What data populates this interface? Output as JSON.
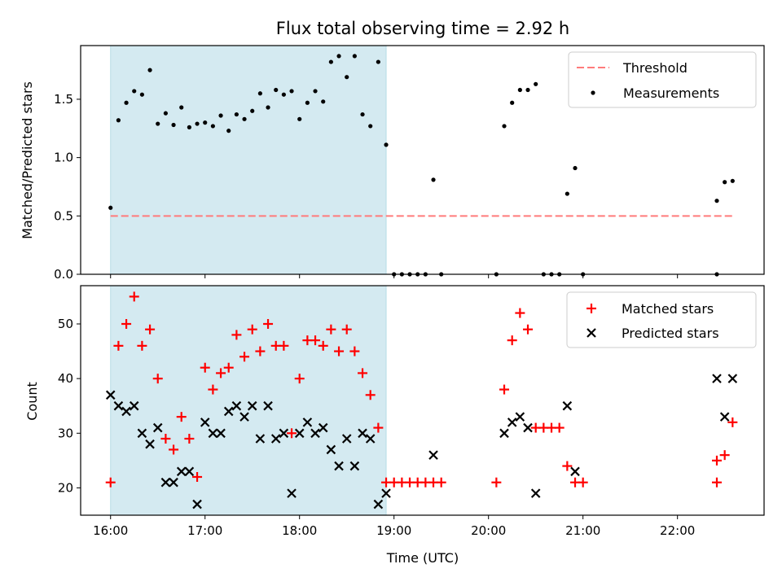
{
  "title": "Flux total observing time = 2.92 h",
  "chart_data": [
    {
      "type": "scatter",
      "ylabel": "Matched/Predicted stars",
      "ylim": [
        0,
        1.96
      ],
      "yticks": [
        "0.0",
        "0.5",
        "1.0",
        "1.5"
      ],
      "ytick_values": [
        0,
        0.5,
        1.0,
        1.5
      ],
      "xlim": [
        "15:41",
        "22:55"
      ],
      "legend_position": "top-right",
      "shaded_interval": {
        "start": "16:00",
        "end": "18:55",
        "color": "#d4eaf1"
      },
      "threshold": {
        "name": "Threshold",
        "value": 0.5,
        "x_start": "16:00",
        "x_end": "22:35",
        "color": "#ff7b7b"
      },
      "series": [
        {
          "name": "Measurements",
          "color": "#000000",
          "points": [
            [
              "16:00",
              0.57
            ],
            [
              "16:05",
              1.32
            ],
            [
              "16:10",
              1.47
            ],
            [
              "16:15",
              1.57
            ],
            [
              "16:20",
              1.54
            ],
            [
              "16:25",
              1.75
            ],
            [
              "16:30",
              1.29
            ],
            [
              "16:35",
              1.38
            ],
            [
              "16:40",
              1.28
            ],
            [
              "16:45",
              1.43
            ],
            [
              "16:50",
              1.26
            ],
            [
              "16:55",
              1.29
            ],
            [
              "17:00",
              1.3
            ],
            [
              "17:05",
              1.27
            ],
            [
              "17:10",
              1.36
            ],
            [
              "17:15",
              1.23
            ],
            [
              "17:20",
              1.37
            ],
            [
              "17:25",
              1.33
            ],
            [
              "17:30",
              1.4
            ],
            [
              "17:35",
              1.55
            ],
            [
              "17:40",
              1.43
            ],
            [
              "17:45",
              1.58
            ],
            [
              "17:50",
              1.54
            ],
            [
              "17:55",
              1.57
            ],
            [
              "18:00",
              1.33
            ],
            [
              "18:05",
              1.47
            ],
            [
              "18:10",
              1.57
            ],
            [
              "18:15",
              1.48
            ],
            [
              "18:20",
              1.82
            ],
            [
              "18:25",
              1.87
            ],
            [
              "18:30",
              1.69
            ],
            [
              "18:35",
              1.87
            ],
            [
              "18:40",
              1.37
            ],
            [
              "18:45",
              1.27
            ],
            [
              "18:50",
              1.82
            ],
            [
              "18:55",
              1.11
            ],
            [
              "19:00",
              0.0
            ],
            [
              "19:05",
              0.0
            ],
            [
              "19:10",
              0.0
            ],
            [
              "19:15",
              0.0
            ],
            [
              "19:20",
              0.0
            ],
            [
              "19:25",
              0.81
            ],
            [
              "19:30",
              0.0
            ],
            [
              "20:05",
              0.0
            ],
            [
              "20:10",
              1.27
            ],
            [
              "20:15",
              1.47
            ],
            [
              "20:20",
              1.58
            ],
            [
              "20:25",
              1.58
            ],
            [
              "20:30",
              1.63
            ],
            [
              "20:35",
              0.0
            ],
            [
              "20:40",
              0.0
            ],
            [
              "20:45",
              0.0
            ],
            [
              "20:50",
              0.69
            ],
            [
              "20:55",
              0.91
            ],
            [
              "21:00",
              0.0
            ],
            [
              "22:25",
              0.0
            ],
            [
              "22:25",
              0.63
            ],
            [
              "22:30",
              0.79
            ],
            [
              "22:35",
              0.8
            ]
          ]
        }
      ]
    },
    {
      "type": "scatter",
      "xlabel": "Time (UTC)",
      "ylabel": "Count",
      "ylim": [
        15,
        57
      ],
      "yticks": [
        "20",
        "30",
        "40",
        "50"
      ],
      "ytick_values": [
        20,
        30,
        40,
        50
      ],
      "xlim": [
        "15:41",
        "22:55"
      ],
      "xticks": [
        "16:00",
        "17:00",
        "18:00",
        "19:00",
        "20:00",
        "21:00",
        "22:00"
      ],
      "legend_position": "top-right",
      "shaded_interval": {
        "start": "16:00",
        "end": "18:55",
        "color": "#d4eaf1"
      },
      "series": [
        {
          "name": "Matched stars",
          "color": "#ff0000",
          "marker": "plus",
          "points": [
            [
              "16:00",
              21
            ],
            [
              "16:05",
              46
            ],
            [
              "16:10",
              50
            ],
            [
              "16:15",
              55
            ],
            [
              "16:20",
              46
            ],
            [
              "16:25",
              49
            ],
            [
              "16:30",
              40
            ],
            [
              "16:35",
              29
            ],
            [
              "16:40",
              27
            ],
            [
              "16:45",
              33
            ],
            [
              "16:50",
              29
            ],
            [
              "16:55",
              22
            ],
            [
              "17:00",
              42
            ],
            [
              "17:05",
              38
            ],
            [
              "17:10",
              41
            ],
            [
              "17:15",
              42
            ],
            [
              "17:20",
              48
            ],
            [
              "17:25",
              44
            ],
            [
              "17:30",
              49
            ],
            [
              "17:35",
              45
            ],
            [
              "17:40",
              50
            ],
            [
              "17:45",
              46
            ],
            [
              "17:50",
              46
            ],
            [
              "17:55",
              30
            ],
            [
              "18:00",
              40
            ],
            [
              "18:05",
              47
            ],
            [
              "18:10",
              47
            ],
            [
              "18:15",
              46
            ],
            [
              "18:20",
              49
            ],
            [
              "18:25",
              45
            ],
            [
              "18:30",
              49
            ],
            [
              "18:35",
              45
            ],
            [
              "18:40",
              41
            ],
            [
              "18:45",
              37
            ],
            [
              "18:50",
              31
            ],
            [
              "18:55",
              21
            ],
            [
              "19:00",
              21
            ],
            [
              "19:05",
              21
            ],
            [
              "19:10",
              21
            ],
            [
              "19:15",
              21
            ],
            [
              "19:20",
              21
            ],
            [
              "19:25",
              21
            ],
            [
              "19:30",
              21
            ],
            [
              "20:05",
              21
            ],
            [
              "20:10",
              38
            ],
            [
              "20:15",
              47
            ],
            [
              "20:20",
              52
            ],
            [
              "20:25",
              49
            ],
            [
              "20:30",
              31
            ],
            [
              "20:35",
              31
            ],
            [
              "20:40",
              31
            ],
            [
              "20:45",
              31
            ],
            [
              "20:50",
              24
            ],
            [
              "20:55",
              21
            ],
            [
              "21:00",
              21
            ],
            [
              "22:25",
              21
            ],
            [
              "22:25",
              25
            ],
            [
              "22:30",
              26
            ],
            [
              "22:35",
              32
            ]
          ]
        },
        {
          "name": "Predicted stars",
          "color": "#000000",
          "marker": "x",
          "points": [
            [
              "16:00",
              37
            ],
            [
              "16:05",
              35
            ],
            [
              "16:10",
              34
            ],
            [
              "16:15",
              35
            ],
            [
              "16:20",
              30
            ],
            [
              "16:25",
              28
            ],
            [
              "16:30",
              31
            ],
            [
              "16:35",
              21
            ],
            [
              "16:40",
              21
            ],
            [
              "16:45",
              23
            ],
            [
              "16:50",
              23
            ],
            [
              "16:55",
              17
            ],
            [
              "17:00",
              32
            ],
            [
              "17:05",
              30
            ],
            [
              "17:10",
              30
            ],
            [
              "17:15",
              34
            ],
            [
              "17:20",
              35
            ],
            [
              "17:25",
              33
            ],
            [
              "17:30",
              35
            ],
            [
              "17:35",
              29
            ],
            [
              "17:40",
              35
            ],
            [
              "17:45",
              29
            ],
            [
              "17:50",
              30
            ],
            [
              "17:55",
              19
            ],
            [
              "18:00",
              30
            ],
            [
              "18:05",
              32
            ],
            [
              "18:10",
              30
            ],
            [
              "18:15",
              31
            ],
            [
              "18:20",
              27
            ],
            [
              "18:25",
              24
            ],
            [
              "18:30",
              29
            ],
            [
              "18:35",
              24
            ],
            [
              "18:40",
              30
            ],
            [
              "18:45",
              29
            ],
            [
              "18:50",
              17
            ],
            [
              "18:55",
              19
            ],
            [
              "19:25",
              26
            ],
            [
              "20:10",
              30
            ],
            [
              "20:15",
              32
            ],
            [
              "20:20",
              33
            ],
            [
              "20:25",
              31
            ],
            [
              "20:30",
              19
            ],
            [
              "20:50",
              35
            ],
            [
              "20:55",
              23
            ],
            [
              "22:25",
              40
            ],
            [
              "22:30",
              33
            ],
            [
              "22:35",
              40
            ]
          ]
        }
      ]
    }
  ]
}
